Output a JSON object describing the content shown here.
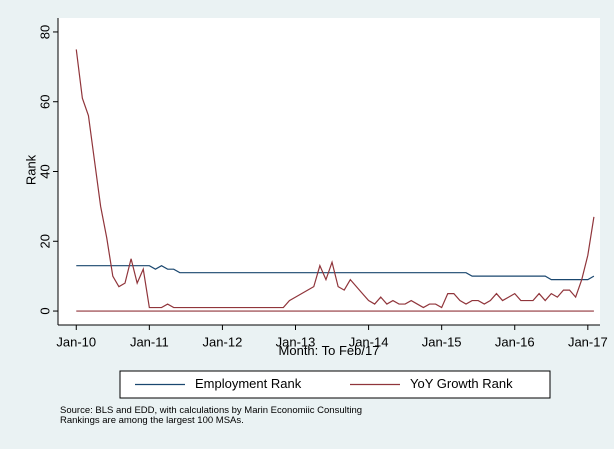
{
  "chart_data": {
    "type": "line",
    "y_label": "Rank",
    "x_label": "Month: To Feb/17",
    "x": [
      "2010-01",
      "2010-02",
      "2010-03",
      "2010-04",
      "2010-05",
      "2010-06",
      "2010-07",
      "2010-08",
      "2010-09",
      "2010-10",
      "2010-11",
      "2010-12",
      "2011-01",
      "2011-02",
      "2011-03",
      "2011-04",
      "2011-05",
      "2011-06",
      "2011-07",
      "2011-08",
      "2011-09",
      "2011-10",
      "2011-11",
      "2011-12",
      "2012-01",
      "2012-02",
      "2012-03",
      "2012-04",
      "2012-05",
      "2012-06",
      "2012-07",
      "2012-08",
      "2012-09",
      "2012-10",
      "2012-11",
      "2012-12",
      "2013-01",
      "2013-02",
      "2013-03",
      "2013-04",
      "2013-05",
      "2013-06",
      "2013-07",
      "2013-08",
      "2013-09",
      "2013-10",
      "2013-11",
      "2013-12",
      "2014-01",
      "2014-02",
      "2014-03",
      "2014-04",
      "2014-05",
      "2014-06",
      "2014-07",
      "2014-08",
      "2014-09",
      "2014-10",
      "2014-11",
      "2014-12",
      "2015-01",
      "2015-02",
      "2015-03",
      "2015-04",
      "2015-05",
      "2015-06",
      "2015-07",
      "2015-08",
      "2015-09",
      "2015-10",
      "2015-11",
      "2015-12",
      "2016-01",
      "2016-02",
      "2016-03",
      "2016-04",
      "2016-05",
      "2016-06",
      "2016-07",
      "2016-08",
      "2016-09",
      "2016-10",
      "2016-11",
      "2016-12",
      "2017-01",
      "2017-02"
    ],
    "series": [
      {
        "name": "Employment Rank",
        "color": "#1a476f",
        "values": [
          13,
          13,
          13,
          13,
          13,
          13,
          13,
          13,
          13,
          13,
          13,
          13,
          13,
          12,
          13,
          12,
          12,
          11,
          11,
          11,
          11,
          11,
          11,
          11,
          11,
          11,
          11,
          11,
          11,
          11,
          11,
          11,
          11,
          11,
          11,
          11,
          11,
          11,
          11,
          11,
          11,
          11,
          11,
          11,
          11,
          11,
          11,
          11,
          11,
          11,
          11,
          11,
          11,
          11,
          11,
          11,
          11,
          11,
          11,
          11,
          11,
          11,
          11,
          11,
          11,
          10,
          10,
          10,
          10,
          10,
          10,
          10,
          10,
          10,
          10,
          10,
          10,
          10,
          9,
          9,
          9,
          9,
          9,
          9,
          9,
          10
        ]
      },
      {
        "name": "YoY Growth Rank",
        "color": "#90353b",
        "values": [
          75,
          61,
          56,
          43,
          30,
          21,
          10,
          7,
          8,
          15,
          8,
          12,
          1,
          1,
          1,
          2,
          1,
          1,
          1,
          1,
          1,
          1,
          1,
          1,
          1,
          1,
          1,
          1,
          1,
          1,
          1,
          1,
          1,
          1,
          1,
          3,
          4,
          5,
          6,
          7,
          13,
          9,
          14,
          7,
          6,
          9,
          7,
          5,
          3,
          2,
          4,
          2,
          3,
          2,
          2,
          3,
          2,
          1,
          2,
          2,
          1,
          5,
          5,
          3,
          2,
          3,
          3,
          2,
          3,
          5,
          3,
          4,
          5,
          3,
          3,
          3,
          5,
          3,
          5,
          4,
          6,
          6,
          4,
          9,
          16,
          27
        ]
      }
    ],
    "reference_line": {
      "value": 0,
      "color": "#90353b"
    },
    "xlim": [
      "2009-10",
      "2017-03"
    ],
    "xticks": [
      {
        "value": "2010-01",
        "label": "Jan-10"
      },
      {
        "value": "2011-01",
        "label": "Jan-11"
      },
      {
        "value": "2012-01",
        "label": "Jan-12"
      },
      {
        "value": "2013-01",
        "label": "Jan-13"
      },
      {
        "value": "2014-01",
        "label": "Jan-14"
      },
      {
        "value": "2015-01",
        "label": "Jan-15"
      },
      {
        "value": "2016-01",
        "label": "Jan-16"
      },
      {
        "value": "2017-01",
        "label": "Jan-17"
      }
    ],
    "ylim": [
      -4,
      84
    ],
    "yticks": [
      0,
      20,
      40,
      60,
      80
    ],
    "grid": false,
    "legend": "bottom",
    "notes": [
      "Source: BLS and EDD, with calculations by Marin Economiic Consulting",
      "Rankings are among the largest 100 MSAs."
    ]
  }
}
